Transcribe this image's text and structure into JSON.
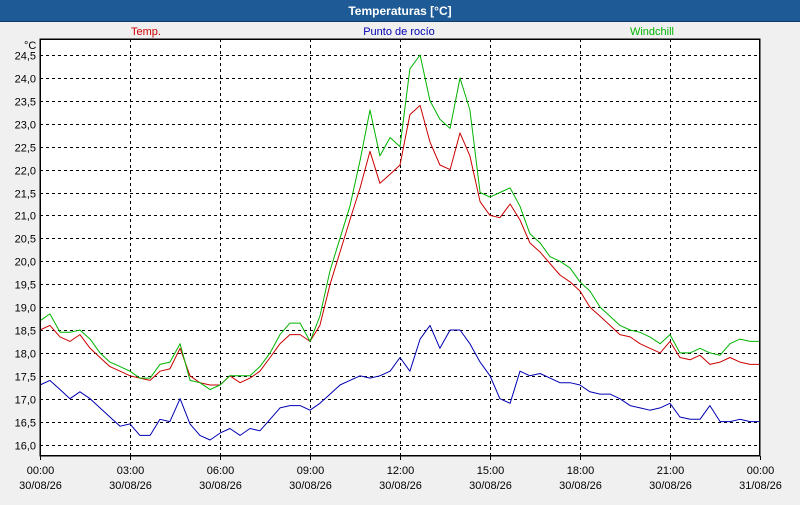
{
  "window": {
    "title": "Temperaturas [°C]"
  },
  "chart_data": {
    "type": "line",
    "unit_label": "°C",
    "ylim": [
      15.75,
      24.85
    ],
    "xlim": [
      0,
      24
    ],
    "grid": true,
    "legend_placement": "top",
    "y_ticks": [
      "16,0",
      "16,5",
      "17,0",
      "17,5",
      "18,0",
      "18,5",
      "19,0",
      "19,5",
      "20,0",
      "20,5",
      "21,0",
      "21,5",
      "22,0",
      "22,5",
      "23,0",
      "23,5",
      "24,0",
      "24,5"
    ],
    "y_tick_values": [
      16.0,
      16.5,
      17.0,
      17.5,
      18.0,
      18.5,
      19.0,
      19.5,
      20.0,
      20.5,
      21.0,
      21.5,
      22.0,
      22.5,
      23.0,
      23.5,
      24.0,
      24.5
    ],
    "x_ticks": [
      {
        "time": "00:00",
        "date": "30/08/26",
        "hour": 0
      },
      {
        "time": "03:00",
        "date": "30/08/26",
        "hour": 3
      },
      {
        "time": "06:00",
        "date": "30/08/26",
        "hour": 6
      },
      {
        "time": "09:00",
        "date": "30/08/26",
        "hour": 9
      },
      {
        "time": "12:00",
        "date": "30/08/26",
        "hour": 12
      },
      {
        "time": "15:00",
        "date": "30/08/26",
        "hour": 15
      },
      {
        "time": "18:00",
        "date": "30/08/26",
        "hour": 18
      },
      {
        "time": "21:00",
        "date": "30/08/26",
        "hour": 21
      },
      {
        "time": "00:00",
        "date": "31/08/26",
        "hour": 24
      }
    ],
    "series": [
      {
        "name": "Temp.",
        "color": "#cc0000",
        "x": [
          0,
          0.33,
          0.67,
          1,
          1.33,
          1.67,
          2,
          2.33,
          2.67,
          3,
          3.33,
          3.67,
          4,
          4.33,
          4.67,
          5,
          5.33,
          5.67,
          6,
          6.33,
          6.67,
          7,
          7.33,
          7.67,
          8,
          8.33,
          8.67,
          9,
          9.33,
          9.67,
          10,
          10.33,
          10.67,
          11,
          11.33,
          11.67,
          12,
          12.33,
          12.67,
          13,
          13.33,
          13.67,
          14,
          14.33,
          14.67,
          15,
          15.33,
          15.67,
          16,
          16.33,
          16.67,
          17,
          17.33,
          17.67,
          18,
          18.33,
          18.67,
          19,
          19.33,
          19.67,
          20,
          20.33,
          20.67,
          21,
          21.33,
          21.67,
          22,
          22.33,
          22.67,
          23,
          23.33,
          23.67,
          24
        ],
        "values": [
          18.5,
          18.6,
          18.35,
          18.25,
          18.4,
          18.1,
          17.9,
          17.7,
          17.6,
          17.5,
          17.45,
          17.4,
          17.6,
          17.65,
          18.1,
          17.5,
          17.35,
          17.3,
          17.3,
          17.5,
          17.35,
          17.45,
          17.6,
          17.9,
          18.2,
          18.4,
          18.4,
          18.25,
          18.6,
          19.5,
          20.2,
          20.9,
          21.6,
          22.4,
          21.7,
          21.9,
          22.1,
          23.2,
          23.4,
          22.6,
          22.1,
          22.0,
          22.8,
          22.3,
          21.3,
          21.0,
          20.95,
          21.25,
          20.9,
          20.4,
          20.2,
          19.95,
          19.7,
          19.55,
          19.35,
          19.0,
          18.8,
          18.6,
          18.4,
          18.35,
          18.2,
          18.1,
          18.0,
          18.25,
          17.9,
          17.85,
          17.95,
          17.75,
          17.8,
          17.9,
          17.8,
          17.75,
          17.75
        ]
      },
      {
        "name": "Punto de rocío",
        "color": "#0000b4",
        "x": [
          0,
          0.33,
          0.67,
          1,
          1.33,
          1.67,
          2,
          2.33,
          2.67,
          3,
          3.33,
          3.67,
          4,
          4.33,
          4.67,
          5,
          5.33,
          5.67,
          6,
          6.33,
          6.67,
          7,
          7.33,
          7.67,
          8,
          8.33,
          8.67,
          9,
          9.33,
          9.67,
          10,
          10.33,
          10.67,
          11,
          11.33,
          11.67,
          12,
          12.33,
          12.67,
          13,
          13.33,
          13.67,
          14,
          14.33,
          14.67,
          15,
          15.33,
          15.67,
          16,
          16.33,
          16.67,
          17,
          17.33,
          17.67,
          18,
          18.33,
          18.67,
          19,
          19.33,
          19.67,
          20,
          20.33,
          20.67,
          21,
          21.33,
          21.67,
          22,
          22.33,
          22.67,
          23,
          23.33,
          23.67,
          24
        ],
        "values": [
          17.3,
          17.4,
          17.2,
          17.0,
          17.15,
          17.0,
          16.8,
          16.6,
          16.4,
          16.45,
          16.2,
          16.2,
          16.55,
          16.5,
          17.0,
          16.45,
          16.2,
          16.1,
          16.25,
          16.35,
          16.2,
          16.35,
          16.3,
          16.55,
          16.8,
          16.85,
          16.85,
          16.75,
          16.9,
          17.1,
          17.3,
          17.4,
          17.5,
          17.45,
          17.5,
          17.6,
          17.9,
          17.6,
          18.3,
          18.6,
          18.1,
          18.5,
          18.5,
          18.2,
          17.8,
          17.5,
          17.0,
          16.9,
          17.6,
          17.5,
          17.55,
          17.45,
          17.35,
          17.35,
          17.3,
          17.15,
          17.1,
          17.1,
          17.0,
          16.85,
          16.8,
          16.75,
          16.8,
          16.9,
          16.6,
          16.55,
          16.55,
          16.85,
          16.5,
          16.5,
          16.55,
          16.5,
          16.5
        ]
      },
      {
        "name": "Windchill",
        "color": "#00b400",
        "x": [
          0,
          0.33,
          0.67,
          1,
          1.33,
          1.67,
          2,
          2.33,
          2.67,
          3,
          3.33,
          3.67,
          4,
          4.33,
          4.67,
          5,
          5.33,
          5.67,
          6,
          6.33,
          6.67,
          7,
          7.33,
          7.67,
          8,
          8.33,
          8.67,
          9,
          9.33,
          9.67,
          10,
          10.33,
          10.67,
          11,
          11.33,
          11.67,
          12,
          12.33,
          12.67,
          13,
          13.33,
          13.67,
          14,
          14.33,
          14.67,
          15,
          15.33,
          15.67,
          16,
          16.33,
          16.67,
          17,
          17.33,
          17.67,
          18,
          18.33,
          18.67,
          19,
          19.33,
          19.67,
          20,
          20.33,
          20.67,
          21,
          21.33,
          21.67,
          22,
          22.33,
          22.67,
          23,
          23.33,
          23.67,
          24
        ],
        "values": [
          18.7,
          18.85,
          18.45,
          18.45,
          18.5,
          18.3,
          18.0,
          17.8,
          17.7,
          17.6,
          17.45,
          17.45,
          17.75,
          17.8,
          18.2,
          17.4,
          17.35,
          17.2,
          17.3,
          17.5,
          17.5,
          17.5,
          17.7,
          18.0,
          18.4,
          18.65,
          18.65,
          18.25,
          18.8,
          19.8,
          20.5,
          21.2,
          22.2,
          23.3,
          22.3,
          22.7,
          22.5,
          24.2,
          24.5,
          23.5,
          23.1,
          22.9,
          24.0,
          23.3,
          21.5,
          21.4,
          21.5,
          21.6,
          21.2,
          20.6,
          20.4,
          20.1,
          20.0,
          19.85,
          19.55,
          19.35,
          19.0,
          18.8,
          18.6,
          18.5,
          18.45,
          18.35,
          18.2,
          18.4,
          18.0,
          18.0,
          18.1,
          18.0,
          17.95,
          18.2,
          18.3,
          18.25,
          18.25
        ]
      }
    ]
  }
}
